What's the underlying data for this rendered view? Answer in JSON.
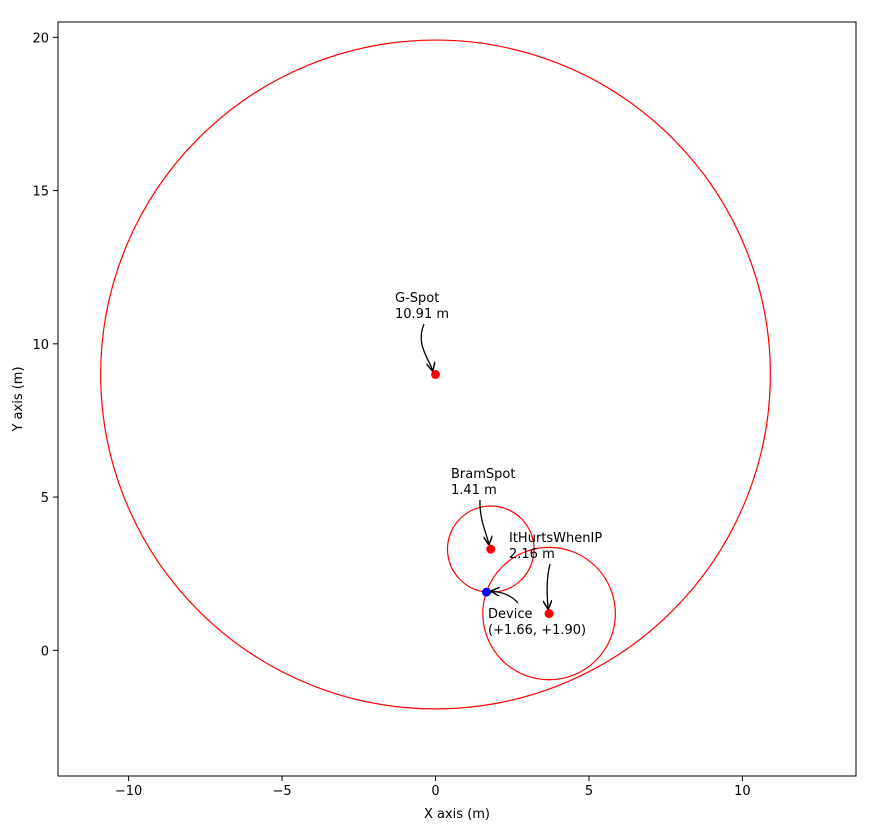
{
  "chart_data": {
    "type": "scatter",
    "xlabel": "X axis (m)",
    "ylabel": "Y axis (m)",
    "xlim": [
      -12.3,
      13.7
    ],
    "ylim": [
      -4.1,
      20.5
    ],
    "xticks": [
      -10,
      -5,
      0,
      5,
      10
    ],
    "yticks": [
      0,
      5,
      10,
      15,
      20
    ],
    "tick_labels_x": [
      "−10",
      "−5",
      "0",
      "5",
      "10"
    ],
    "tick_labels_y": [
      "0",
      "5",
      "10",
      "15",
      "20"
    ],
    "grid": false,
    "colors": {
      "beacon": "#ff0000",
      "device": "#0000ff",
      "circle": "#ff0000"
    },
    "beacons": [
      {
        "name": "G-Spot",
        "distance_label": "10.91 m",
        "x": 0.0,
        "y": 9.0,
        "radius": 10.91
      },
      {
        "name": "BramSpot",
        "distance_label": "1.41 m",
        "x": 1.8,
        "y": 3.3,
        "radius": 1.41
      },
      {
        "name": "ItHurtsWhenIP",
        "distance_label": "2.16 m",
        "x": 3.7,
        "y": 1.2,
        "radius": 2.16
      }
    ],
    "device": {
      "name": "Device",
      "coord_label": "(+1.66, +1.90)",
      "x": 1.66,
      "y": 1.9
    }
  }
}
